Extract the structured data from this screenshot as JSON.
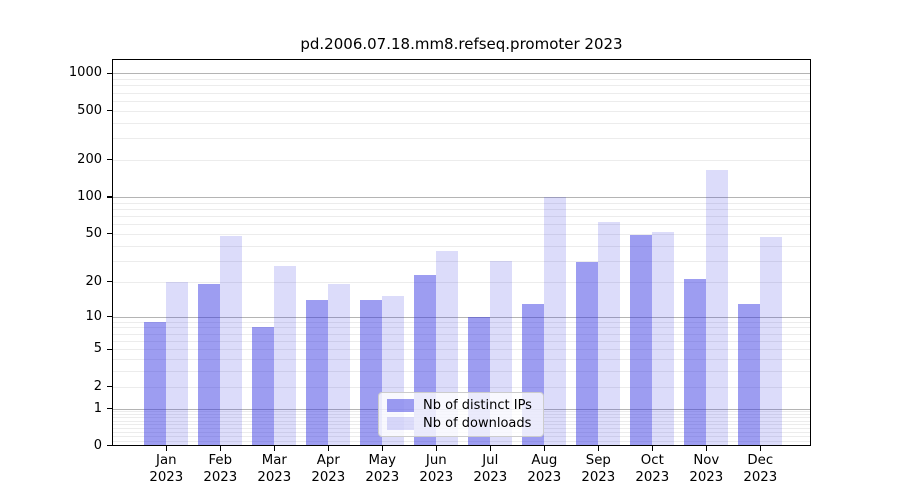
{
  "chart_data": {
    "type": "bar",
    "title": "pd.2006.07.18.mm8.refseq.promoter 2023",
    "year_label": "2023",
    "categories": [
      "Jan",
      "Feb",
      "Mar",
      "Apr",
      "May",
      "Jun",
      "Jul",
      "Aug",
      "Sep",
      "Oct",
      "Nov",
      "Dec"
    ],
    "series": [
      {
        "name": "Nb of distinct IPs",
        "color": "rgba(47,47,226,0.47)",
        "values": [
          9,
          19,
          8,
          14,
          14,
          23,
          10,
          13,
          29,
          49,
          21,
          13
        ]
      },
      {
        "name": "Nb of downloads",
        "color": "rgba(47,47,226,0.17)",
        "values": [
          20,
          48,
          27,
          19,
          15,
          36,
          30,
          100,
          63,
          52,
          165,
          47
        ]
      }
    ],
    "yscale": "log1p",
    "ylim": [
      0,
      1280
    ],
    "yticks": [
      0,
      1,
      2,
      5,
      10,
      20,
      50,
      100,
      200,
      500,
      1000
    ],
    "ytick_labels": [
      "0",
      "1",
      "2",
      "5",
      "10",
      "20",
      "50",
      "100",
      "200",
      "500",
      "1000"
    ],
    "major_grid_values": [
      1,
      10,
      100,
      1000
    ],
    "grid": "on",
    "legend_position": "lower center"
  },
  "colors": {
    "background": "#ffffff",
    "axis": "#000000",
    "grid_major": "#b4b4b4",
    "grid_minor": "#ececec",
    "text": "#000000"
  }
}
